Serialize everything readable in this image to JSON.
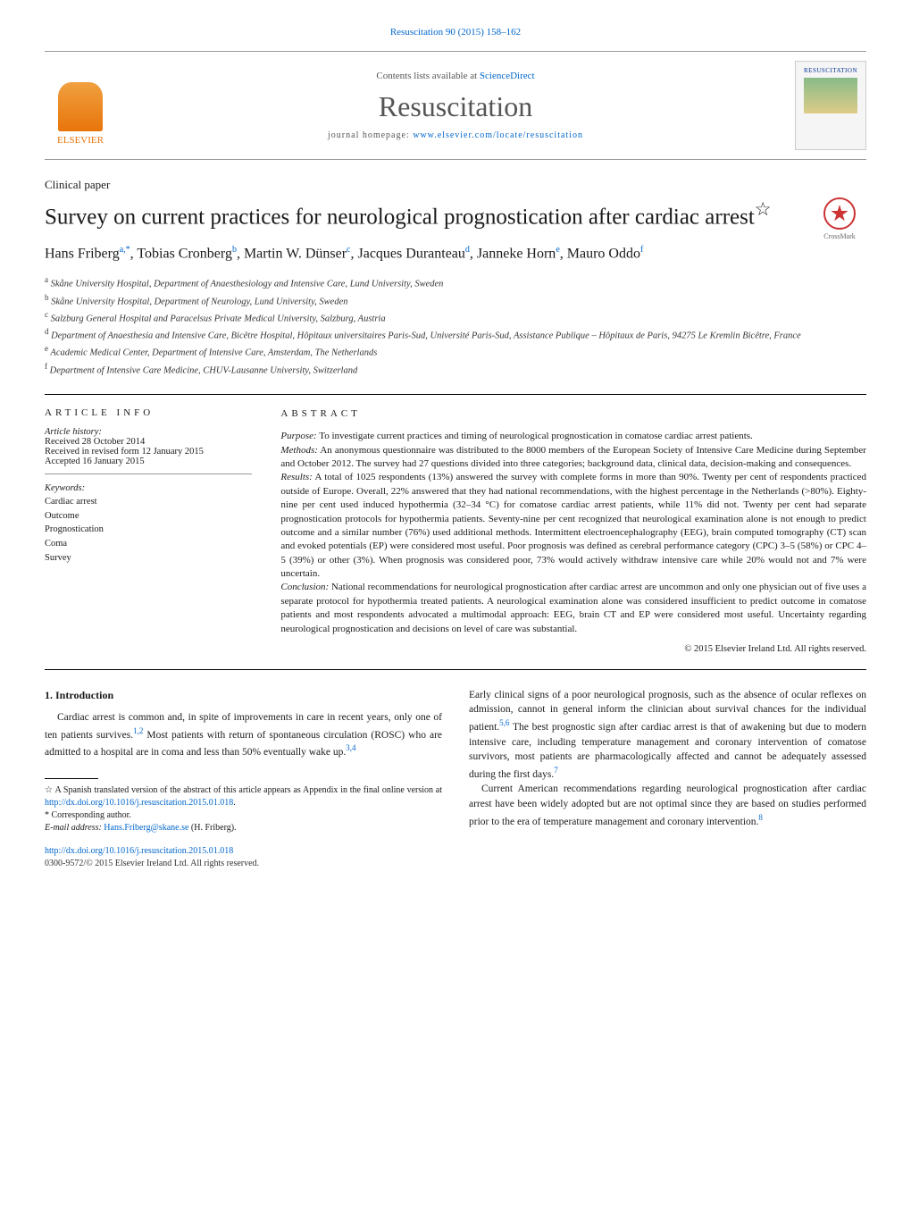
{
  "header_ref": "Resuscitation 90 (2015) 158–162",
  "banner": {
    "publisher": "ELSEVIER",
    "contents_prefix": "Contents lists available at ",
    "contents_link": "ScienceDirect",
    "journal_name": "Resuscitation",
    "homepage_label": "journal homepage: ",
    "homepage_url": "www.elsevier.com/locate/resuscitation",
    "cover_title": "RESUSCITATION"
  },
  "paper_type": "Clinical paper",
  "title": "Survey on current practices for neurological prognostication after cardiac arrest",
  "title_footnote_marker": "☆",
  "crossmark_label": "CrossMark",
  "authors_html": "Hans Friberg<sup>a,*</sup>, Tobias Cronberg<sup>b</sup>, Martin W. Dünser<sup>c</sup>, Jacques Duranteau<sup>d</sup>, Janneke Horn<sup>e</sup>, Mauro Oddo<sup>f</sup>",
  "affiliations": [
    {
      "marker": "a",
      "text": "Skåne University Hospital, Department of Anaesthesiology and Intensive Care, Lund University, Sweden"
    },
    {
      "marker": "b",
      "text": "Skåne University Hospital, Department of Neurology, Lund University, Sweden"
    },
    {
      "marker": "c",
      "text": "Salzburg General Hospital and Paracelsus Private Medical University, Salzburg, Austria"
    },
    {
      "marker": "d",
      "text": "Department of Anaesthesia and Intensive Care, Bicêtre Hospital, Hôpitaux universitaires Paris-Sud, Université Paris-Sud, Assistance Publique – Hôpitaux de Paris, 94275 Le Kremlin Bicêtre, France"
    },
    {
      "marker": "e",
      "text": "Academic Medical Center, Department of Intensive Care, Amsterdam, The Netherlands"
    },
    {
      "marker": "f",
      "text": "Department of Intensive Care Medicine, CHUV-Lausanne University, Switzerland"
    }
  ],
  "article_info": {
    "heading": "article info",
    "history_label": "Article history:",
    "received": "Received 28 October 2014",
    "revised": "Received in revised form 12 January 2015",
    "accepted": "Accepted 16 January 2015",
    "keywords_label": "Keywords:",
    "keywords": [
      "Cardiac arrest",
      "Outcome",
      "Prognostication",
      "Coma",
      "Survey"
    ]
  },
  "abstract": {
    "heading": "abstract",
    "purpose_label": "Purpose:",
    "purpose": "To investigate current practices and timing of neurological prognostication in comatose cardiac arrest patients.",
    "methods_label": "Methods:",
    "methods": "An anonymous questionnaire was distributed to the 8000 members of the European Society of Intensive Care Medicine during September and October 2012. The survey had 27 questions divided into three categories; background data, clinical data, decision-making and consequences.",
    "results_label": "Results:",
    "results": "A total of 1025 respondents (13%) answered the survey with complete forms in more than 90%. Twenty per cent of respondents practiced outside of Europe. Overall, 22% answered that they had national recommendations, with the highest percentage in the Netherlands (>80%). Eighty-nine per cent used induced hypothermia (32–34 °C) for comatose cardiac arrest patients, while 11% did not. Twenty per cent had separate prognostication protocols for hypothermia patients. Seventy-nine per cent recognized that neurological examination alone is not enough to predict outcome and a similar number (76%) used additional methods. Intermittent electroencephalography (EEG), brain computed tomography (CT) scan and evoked potentials (EP) were considered most useful. Poor prognosis was defined as cerebral performance category (CPC) 3–5 (58%) or CPC 4–5 (39%) or other (3%). When prognosis was considered poor, 73% would actively withdraw intensive care while 20% would not and 7% were uncertain.",
    "conclusion_label": "Conclusion:",
    "conclusion": "National recommendations for neurological prognostication after cardiac arrest are uncommon and only one physician out of five uses a separate protocol for hypothermia treated patients. A neurological examination alone was considered insufficient to predict outcome in comatose patients and most respondents advocated a multimodal approach: EEG, brain CT and EP were considered most useful. Uncertainty regarding neurological prognostication and decisions on level of care was substantial.",
    "copyright": "© 2015 Elsevier Ireland Ltd. All rights reserved."
  },
  "body": {
    "intro_heading": "1. Introduction",
    "col1_p1": "Cardiac arrest is common and, in spite of improvements in care in recent years, only one of ten patients survives.",
    "col1_p1_ref": "1,2",
    "col1_p1b": " Most patients with return of spontaneous circulation (ROSC) who are admitted to a hospital are in coma and less than 50% eventually wake up.",
    "col1_p1b_ref": "3,4",
    "col2_p1": "Early clinical signs of a poor neurological prognosis, such as the absence of ocular reflexes on admission, cannot in general inform the clinician about survival chances for the individual patient.",
    "col2_p1_ref": "5,6",
    "col2_p1b": " The best prognostic sign after cardiac arrest is that of awakening but due to modern intensive care, including temperature management and coronary intervention of comatose survivors, most patients are pharmacologically affected and cannot be adequately assessed during the first days.",
    "col2_p1b_ref": "7",
    "col2_p2": "Current American recommendations regarding neurological prognostication after cardiac arrest have been widely adopted but are not optimal since they are based on studies performed prior to the era of temperature management and coronary intervention.",
    "col2_p2_ref": "8"
  },
  "footnotes": {
    "star": "☆ A Spanish translated version of the abstract of this article appears as Appendix in the final online version at ",
    "star_url": "http://dx.doi.org/10.1016/j.resuscitation.2015.01.018",
    "corr": "* Corresponding author.",
    "email_label": "E-mail address: ",
    "email": "Hans.Friberg@skane.se",
    "email_person": " (H. Friberg)."
  },
  "doi": {
    "url": "http://dx.doi.org/10.1016/j.resuscitation.2015.01.018",
    "issn": "0300-9572/© 2015 Elsevier Ireland Ltd. All rights reserved."
  },
  "colors": {
    "link": "#0066cc",
    "publisher_orange": "#e8750b",
    "text": "#1a1a1a"
  }
}
